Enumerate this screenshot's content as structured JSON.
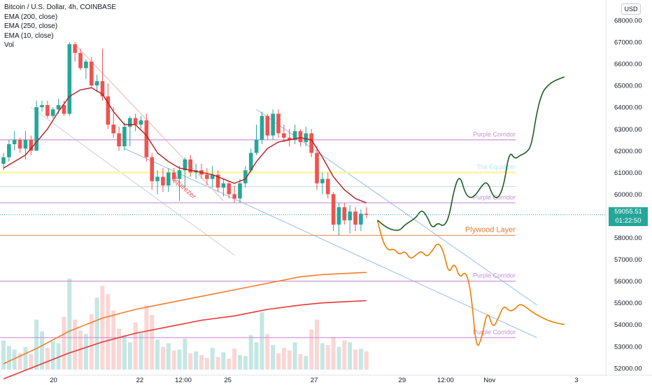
{
  "legend": {
    "title": "Bitcoin / U.S. Dollar, 4h, COINBASE",
    "indicators": [
      "EMA (200, close)",
      "EMA (250, close)",
      "EMA (10, close)",
      "Vol"
    ]
  },
  "currency_label": "USD",
  "last_price": {
    "price": "59055.51",
    "countdown": "01:22:50",
    "color": "#26a69a"
  },
  "colors": {
    "up": "#26a69a",
    "down": "#ef5350",
    "ema10": "#b71c1c",
    "ema200": "#f57c2a",
    "ema250": "#e53935",
    "purple_line": "#ce93d8",
    "projection_bull": "#1b5e20",
    "projection_bear": "#ef7c00",
    "channel": "#90b4e0"
  },
  "chart_data": {
    "type": "candlestick",
    "ylim": [
      51800,
      68600
    ],
    "y_ticks": [
      52000,
      53000,
      54000,
      55000,
      56000,
      57000,
      58000,
      59000,
      60000,
      61000,
      62000,
      63000,
      64000,
      65000,
      66000,
      67000,
      68000
    ],
    "y_tick_labels": [
      "52000.00",
      "53000.00",
      "54000.00",
      "55000.00",
      "56000.00",
      "57000.00",
      "58000.00",
      "59000.00",
      "60000.00",
      "61000.00",
      "62000.00",
      "63000.00",
      "64000.00",
      "65000.00",
      "66000.00",
      "67000.00",
      "68000.00"
    ],
    "x_ticks": [
      {
        "x": 9.1,
        "label": "20"
      },
      {
        "x": 24.8,
        "label": "22"
      },
      {
        "x": 32.7,
        "label": "12:00"
      },
      {
        "x": 40.8,
        "label": "25"
      },
      {
        "x": 56.5,
        "label": "27"
      },
      {
        "x": 72.5,
        "label": "29"
      },
      {
        "x": 80.4,
        "label": "12:00"
      },
      {
        "x": 88.4,
        "label": "Nov"
      },
      {
        "x": 104.2,
        "label": "3"
      }
    ],
    "candles": [
      {
        "x": 0,
        "o": 61400,
        "h": 61900,
        "l": 61100,
        "c": 61700
      },
      {
        "x": 1,
        "o": 61700,
        "h": 62500,
        "l": 61500,
        "c": 62300
      },
      {
        "x": 2,
        "o": 62300,
        "h": 62900,
        "l": 62000,
        "c": 62500
      },
      {
        "x": 3,
        "o": 62500,
        "h": 62600,
        "l": 61900,
        "c": 62100
      },
      {
        "x": 4,
        "o": 62100,
        "h": 62900,
        "l": 61600,
        "c": 62500
      },
      {
        "x": 5,
        "o": 62500,
        "h": 62700,
        "l": 61800,
        "c": 62000
      },
      {
        "x": 6,
        "o": 62000,
        "h": 64300,
        "l": 62000,
        "c": 64000
      },
      {
        "x": 7,
        "o": 64000,
        "h": 64300,
        "l": 63800,
        "c": 64100
      },
      {
        "x": 8,
        "o": 64100,
        "h": 64300,
        "l": 63500,
        "c": 63600
      },
      {
        "x": 9,
        "o": 63600,
        "h": 64000,
        "l": 63500,
        "c": 63900
      },
      {
        "x": 10,
        "o": 63900,
        "h": 64400,
        "l": 63700,
        "c": 64100
      },
      {
        "x": 11,
        "o": 64100,
        "h": 64300,
        "l": 63600,
        "c": 63700
      },
      {
        "x": 12,
        "o": 63700,
        "h": 67000,
        "l": 63600,
        "c": 66900
      },
      {
        "x": 13,
        "o": 66900,
        "h": 67000,
        "l": 66100,
        "c": 66500
      },
      {
        "x": 14,
        "o": 66500,
        "h": 66700,
        "l": 65700,
        "c": 65800
      },
      {
        "x": 15,
        "o": 65800,
        "h": 66200,
        "l": 65300,
        "c": 66100
      },
      {
        "x": 16,
        "o": 66100,
        "h": 66300,
        "l": 64900,
        "c": 65000
      },
      {
        "x": 17,
        "o": 65000,
        "h": 65500,
        "l": 64700,
        "c": 65200
      },
      {
        "x": 18,
        "o": 65200,
        "h": 66700,
        "l": 64300,
        "c": 64500
      },
      {
        "x": 19,
        "o": 64500,
        "h": 65100,
        "l": 63000,
        "c": 63200
      },
      {
        "x": 20,
        "o": 63200,
        "h": 64000,
        "l": 62600,
        "c": 62800
      },
      {
        "x": 21,
        "o": 62800,
        "h": 63100,
        "l": 62000,
        "c": 62200
      },
      {
        "x": 22,
        "o": 62200,
        "h": 63300,
        "l": 62000,
        "c": 63100
      },
      {
        "x": 23,
        "o": 63100,
        "h": 63600,
        "l": 62200,
        "c": 63500
      },
      {
        "x": 24,
        "o": 63500,
        "h": 63700,
        "l": 62900,
        "c": 63200
      },
      {
        "x": 25,
        "o": 63200,
        "h": 63600,
        "l": 63000,
        "c": 63400
      },
      {
        "x": 26,
        "o": 63400,
        "h": 63700,
        "l": 61500,
        "c": 61700
      },
      {
        "x": 27,
        "o": 61700,
        "h": 61900,
        "l": 60200,
        "c": 60600
      },
      {
        "x": 28,
        "o": 60600,
        "h": 61100,
        "l": 60000,
        "c": 60800
      },
      {
        "x": 29,
        "o": 60800,
        "h": 61200,
        "l": 60100,
        "c": 60400
      },
      {
        "x": 30,
        "o": 60400,
        "h": 61200,
        "l": 60100,
        "c": 61000
      },
      {
        "x": 31,
        "o": 61000,
        "h": 61200,
        "l": 60500,
        "c": 60700
      },
      {
        "x": 32,
        "o": 60700,
        "h": 61300,
        "l": 59700,
        "c": 61100
      },
      {
        "x": 33,
        "o": 61100,
        "h": 61700,
        "l": 60300,
        "c": 61600
      },
      {
        "x": 34,
        "o": 61600,
        "h": 61800,
        "l": 60800,
        "c": 61000
      },
      {
        "x": 35,
        "o": 61000,
        "h": 61400,
        "l": 60700,
        "c": 61100
      },
      {
        "x": 36,
        "o": 61100,
        "h": 61400,
        "l": 60700,
        "c": 60900
      },
      {
        "x": 37,
        "o": 60900,
        "h": 61200,
        "l": 60400,
        "c": 60700
      },
      {
        "x": 38,
        "o": 60700,
        "h": 61300,
        "l": 60300,
        "c": 60900
      },
      {
        "x": 39,
        "o": 60900,
        "h": 61100,
        "l": 60100,
        "c": 60300
      },
      {
        "x": 40,
        "o": 60300,
        "h": 60700,
        "l": 59900,
        "c": 60500
      },
      {
        "x": 41,
        "o": 60500,
        "h": 60600,
        "l": 59800,
        "c": 60000
      },
      {
        "x": 42,
        "o": 60000,
        "h": 60400,
        "l": 59600,
        "c": 59800
      },
      {
        "x": 43,
        "o": 59800,
        "h": 60700,
        "l": 59600,
        "c": 60500
      },
      {
        "x": 44,
        "o": 60500,
        "h": 61300,
        "l": 60300,
        "c": 61100
      },
      {
        "x": 45,
        "o": 61100,
        "h": 62100,
        "l": 61000,
        "c": 61900
      },
      {
        "x": 46,
        "o": 61900,
        "h": 63200,
        "l": 61800,
        "c": 62500
      },
      {
        "x": 47,
        "o": 62500,
        "h": 63800,
        "l": 62300,
        "c": 63600
      },
      {
        "x": 48,
        "o": 63600,
        "h": 63700,
        "l": 62500,
        "c": 62700
      },
      {
        "x": 49,
        "o": 62700,
        "h": 63900,
        "l": 62500,
        "c": 63700
      },
      {
        "x": 50,
        "o": 63700,
        "h": 63900,
        "l": 62600,
        "c": 62800
      },
      {
        "x": 51,
        "o": 62800,
        "h": 63200,
        "l": 62400,
        "c": 62600
      },
      {
        "x": 52,
        "o": 62600,
        "h": 63000,
        "l": 62200,
        "c": 62500
      },
      {
        "x": 53,
        "o": 62500,
        "h": 63200,
        "l": 62300,
        "c": 62900
      },
      {
        "x": 54,
        "o": 62900,
        "h": 63000,
        "l": 62200,
        "c": 62400
      },
      {
        "x": 55,
        "o": 62400,
        "h": 63100,
        "l": 62200,
        "c": 62800
      },
      {
        "x": 56,
        "o": 62800,
        "h": 63000,
        "l": 61700,
        "c": 61900
      },
      {
        "x": 57,
        "o": 61900,
        "h": 62200,
        "l": 60200,
        "c": 60500
      },
      {
        "x": 58,
        "o": 60500,
        "h": 61000,
        "l": 60000,
        "c": 60700
      },
      {
        "x": 59,
        "o": 60700,
        "h": 61000,
        "l": 59800,
        "c": 60000
      },
      {
        "x": 60,
        "o": 60000,
        "h": 60100,
        "l": 58300,
        "c": 58600
      },
      {
        "x": 61,
        "o": 58600,
        "h": 59600,
        "l": 58100,
        "c": 59400
      },
      {
        "x": 62,
        "o": 59400,
        "h": 59600,
        "l": 58600,
        "c": 58800
      },
      {
        "x": 63,
        "o": 58800,
        "h": 59500,
        "l": 58200,
        "c": 59200
      },
      {
        "x": 64,
        "o": 59200,
        "h": 59400,
        "l": 58300,
        "c": 58600
      },
      {
        "x": 65,
        "o": 58600,
        "h": 59300,
        "l": 58300,
        "c": 59100
      },
      {
        "x": 66,
        "o": 59100,
        "h": 59400,
        "l": 58900,
        "c": 59055
      }
    ],
    "volume": [
      {
        "x": 0,
        "v": 0.32
      },
      {
        "x": 1,
        "v": 0.26
      },
      {
        "x": 2,
        "v": 0.22
      },
      {
        "x": 3,
        "v": 0.18
      },
      {
        "x": 4,
        "v": 0.25
      },
      {
        "x": 5,
        "v": 0.17
      },
      {
        "x": 6,
        "v": 0.55
      },
      {
        "x": 7,
        "v": 0.42
      },
      {
        "x": 8,
        "v": 0.24
      },
      {
        "x": 9,
        "v": 0.31
      },
      {
        "x": 10,
        "v": 0.29
      },
      {
        "x": 11,
        "v": 0.58
      },
      {
        "x": 12,
        "v": 1.0
      },
      {
        "x": 13,
        "v": 0.55
      },
      {
        "x": 14,
        "v": 0.43
      },
      {
        "x": 15,
        "v": 0.39
      },
      {
        "x": 16,
        "v": 0.61
      },
      {
        "x": 17,
        "v": 0.79
      },
      {
        "x": 18,
        "v": 0.92
      },
      {
        "x": 19,
        "v": 0.83
      },
      {
        "x": 20,
        "v": 0.65
      },
      {
        "x": 21,
        "v": 0.45
      },
      {
        "x": 22,
        "v": 0.38
      },
      {
        "x": 23,
        "v": 0.3
      },
      {
        "x": 24,
        "v": 0.52
      },
      {
        "x": 25,
        "v": 0.4
      },
      {
        "x": 26,
        "v": 0.71
      },
      {
        "x": 27,
        "v": 0.6
      },
      {
        "x": 28,
        "v": 0.33
      },
      {
        "x": 29,
        "v": 0.25
      },
      {
        "x": 30,
        "v": 0.29
      },
      {
        "x": 31,
        "v": 0.21
      },
      {
        "x": 32,
        "v": 0.22
      },
      {
        "x": 33,
        "v": 0.34
      },
      {
        "x": 34,
        "v": 0.18
      },
      {
        "x": 35,
        "v": 0.2
      },
      {
        "x": 36,
        "v": 0.16
      },
      {
        "x": 37,
        "v": 0.13
      },
      {
        "x": 38,
        "v": 0.24
      },
      {
        "x": 39,
        "v": 0.14
      },
      {
        "x": 40,
        "v": 0.19
      },
      {
        "x": 41,
        "v": 0.12
      },
      {
        "x": 42,
        "v": 0.23
      },
      {
        "x": 43,
        "v": 0.16
      },
      {
        "x": 44,
        "v": 0.15
      },
      {
        "x": 45,
        "v": 0.38
      },
      {
        "x": 46,
        "v": 0.3
      },
      {
        "x": 47,
        "v": 0.63
      },
      {
        "x": 48,
        "v": 0.39
      },
      {
        "x": 49,
        "v": 0.27
      },
      {
        "x": 50,
        "v": 0.18
      },
      {
        "x": 51,
        "v": 0.24
      },
      {
        "x": 52,
        "v": 0.21
      },
      {
        "x": 53,
        "v": 0.3
      },
      {
        "x": 54,
        "v": 0.17
      },
      {
        "x": 55,
        "v": 0.15
      },
      {
        "x": 56,
        "v": 0.44
      },
      {
        "x": 57,
        "v": 0.55
      },
      {
        "x": 58,
        "v": 0.29
      },
      {
        "x": 59,
        "v": 0.27
      },
      {
        "x": 60,
        "v": 0.36
      },
      {
        "x": 61,
        "v": 0.25
      },
      {
        "x": 62,
        "v": 0.32
      },
      {
        "x": 63,
        "v": 0.3
      },
      {
        "x": 64,
        "v": 0.22
      },
      {
        "x": 65,
        "v": 0.23
      },
      {
        "x": 66,
        "v": 0.2
      }
    ],
    "ema10": [
      [
        0,
        61200
      ],
      [
        4,
        61800
      ],
      [
        8,
        63000
      ],
      [
        10,
        63800
      ],
      [
        12,
        64500
      ],
      [
        14,
        64800
      ],
      [
        16,
        64900
      ],
      [
        18,
        64600
      ],
      [
        20,
        63800
      ],
      [
        22,
        63200
      ],
      [
        24,
        63200
      ],
      [
        26,
        62700
      ],
      [
        28,
        61900
      ],
      [
        30,
        61500
      ],
      [
        32,
        61200
      ],
      [
        34,
        61100
      ],
      [
        36,
        61000
      ],
      [
        38,
        60900
      ],
      [
        40,
        60700
      ],
      [
        42,
        60500
      ],
      [
        44,
        60700
      ],
      [
        46,
        61500
      ],
      [
        48,
        62100
      ],
      [
        50,
        62400
      ],
      [
        52,
        62500
      ],
      [
        54,
        62600
      ],
      [
        56,
        62500
      ],
      [
        58,
        61700
      ],
      [
        60,
        60800
      ],
      [
        62,
        60200
      ],
      [
        64,
        59800
      ],
      [
        66,
        59600
      ]
    ],
    "ema200": [
      [
        0,
        52200
      ],
      [
        6,
        52900
      ],
      [
        12,
        53700
      ],
      [
        18,
        54300
      ],
      [
        24,
        54700
      ],
      [
        30,
        55000
      ],
      [
        36,
        55300
      ],
      [
        42,
        55600
      ],
      [
        48,
        55900
      ],
      [
        54,
        56200
      ],
      [
        58,
        56300
      ],
      [
        62,
        56350
      ],
      [
        66,
        56400
      ]
    ],
    "ema250": [
      [
        0,
        51500
      ],
      [
        6,
        52100
      ],
      [
        12,
        52700
      ],
      [
        18,
        53200
      ],
      [
        24,
        53600
      ],
      [
        30,
        53900
      ],
      [
        36,
        54200
      ],
      [
        42,
        54400
      ],
      [
        48,
        54700
      ],
      [
        54,
        54900
      ],
      [
        58,
        55000
      ],
      [
        62,
        55050
      ],
      [
        66,
        55100
      ]
    ],
    "horizontal_lines": [
      {
        "price": 62500,
        "label": "Purple Corridor",
        "color": "#ce93d8"
      },
      {
        "price": 61000,
        "label": "The Equalizer",
        "color": "#fff59d"
      },
      {
        "price": 59600,
        "label": "Purple Corridor",
        "color": "#ce93d8"
      },
      {
        "price": 58100,
        "label": "Plywood Layer",
        "color": "#ef9a6a"
      },
      {
        "price": 56000,
        "label": "Purple Corridor",
        "color": "#ce93d8"
      },
      {
        "price": 53400,
        "label": "Purple Corridor",
        "color": "#ce93d8"
      }
    ],
    "extra_levels": [
      60350
    ],
    "projection_bull": [
      [
        68,
        58800
      ],
      [
        70,
        58400
      ],
      [
        72,
        58300
      ],
      [
        73,
        58600
      ],
      [
        75,
        58900
      ],
      [
        76,
        59300
      ],
      [
        77,
        59000
      ],
      [
        78,
        58400
      ],
      [
        79,
        58700
      ],
      [
        80,
        58500
      ],
      [
        81,
        58900
      ],
      [
        82,
        60300
      ],
      [
        83,
        60900
      ],
      [
        84,
        60000
      ],
      [
        85,
        59800
      ],
      [
        86,
        60000
      ],
      [
        87,
        60400
      ],
      [
        88,
        60600
      ],
      [
        89,
        59900
      ],
      [
        90,
        59800
      ],
      [
        91,
        60400
      ],
      [
        92,
        62000
      ],
      [
        93,
        61600
      ],
      [
        94,
        61800
      ],
      [
        95,
        61900
      ],
      [
        96,
        62200
      ],
      [
        97,
        63800
      ],
      [
        98,
        64700
      ],
      [
        99,
        65000
      ],
      [
        100,
        65200
      ],
      [
        102,
        65400
      ]
    ],
    "projection_bear": [
      [
        68,
        58800
      ],
      [
        69,
        57800
      ],
      [
        70,
        57400
      ],
      [
        71,
        57500
      ],
      [
        72,
        57200
      ],
      [
        73,
        57400
      ],
      [
        74,
        57000
      ],
      [
        75,
        57200
      ],
      [
        76,
        57400
      ],
      [
        77,
        57100
      ],
      [
        78,
        57400
      ],
      [
        79,
        57800
      ],
      [
        80,
        57400
      ],
      [
        81,
        56300
      ],
      [
        82,
        56900
      ],
      [
        83,
        56100
      ],
      [
        84,
        56500
      ],
      [
        85,
        55600
      ],
      [
        86,
        52800
      ],
      [
        87,
        53400
      ],
      [
        88,
        54700
      ],
      [
        89,
        53800
      ],
      [
        90,
        54300
      ],
      [
        91,
        54900
      ],
      [
        92,
        54600
      ],
      [
        93,
        54700
      ],
      [
        94,
        55000
      ],
      [
        96,
        54600
      ],
      [
        98,
        54300
      ],
      [
        100,
        54100
      ],
      [
        102,
        54000
      ]
    ],
    "channel_lines": [
      {
        "from": [
          5,
          64000
        ],
        "to": [
          42,
          57200
        ],
        "color": "#d3d6de"
      },
      {
        "from": [
          22,
          62100
        ],
        "to": [
          97,
          53400
        ],
        "color": "#a9c6ea"
      },
      {
        "from": [
          46,
          63900
        ],
        "to": [
          97,
          54900
        ],
        "color": "#a9c6ea"
      },
      {
        "from": [
          13,
          66900
        ],
        "to": [
          40,
          59700
        ],
        "color": "#e9c3c3"
      }
    ],
    "annotations": [
      {
        "x": 30.5,
        "price": 60700,
        "text": "Squeezer",
        "color": "#ef5350",
        "rotate": 42
      }
    ]
  }
}
